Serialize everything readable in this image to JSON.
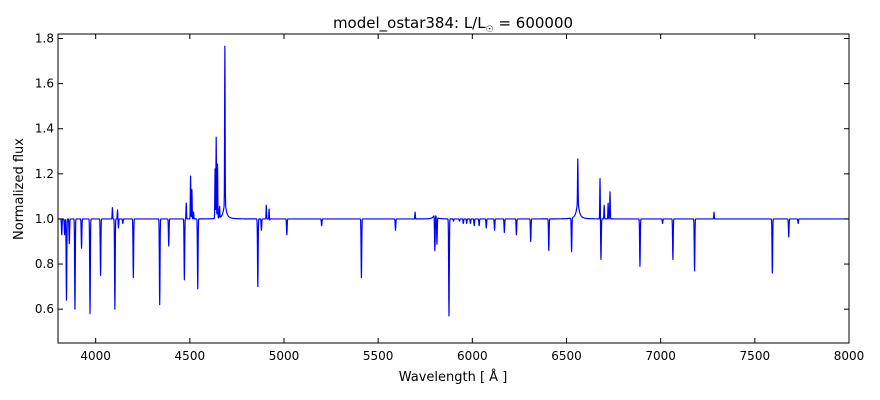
{
  "chart_data": {
    "type": "line",
    "title": "model_ostar384: L/L",
    "title_symbol": "☉",
    "title_suffix": " = 600000",
    "xlabel": "Wavelength [ Å ]",
    "ylabel": "Normalized flux",
    "xlim": [
      3800,
      8000
    ],
    "ylim": [
      0.45,
      1.82
    ],
    "grid": false,
    "legend": "none",
    "x_ticks": [
      4000,
      4500,
      5000,
      5500,
      6000,
      6500,
      7000,
      7500,
      8000
    ],
    "x_tick_labels": [
      "4000",
      "4500",
      "5000",
      "5500",
      "6000",
      "6500",
      "7000",
      "7500",
      "8000"
    ],
    "y_ticks": [
      0.6,
      0.8,
      1.0,
      1.2,
      1.4,
      1.6,
      1.8
    ],
    "y_tick_labels": [
      "0.6",
      "0.8",
      "1.0",
      "1.2",
      "1.4",
      "1.6",
      "1.8"
    ],
    "series": [
      {
        "color": "#0000ff",
        "continuum": 1.0,
        "absorption_lines": [
          {
            "x": 3820,
            "y": 0.93
          },
          {
            "x": 3835,
            "y": 0.93
          },
          {
            "x": 3845,
            "y": 0.64
          },
          {
            "x": 3860,
            "y": 0.89
          },
          {
            "x": 3890,
            "y": 0.6
          },
          {
            "x": 3925,
            "y": 0.87
          },
          {
            "x": 3970,
            "y": 0.58
          },
          {
            "x": 4026,
            "y": 0.75
          },
          {
            "x": 4102,
            "y": 0.6
          },
          {
            "x": 4121,
            "y": 0.96
          },
          {
            "x": 4144,
            "y": 0.98
          },
          {
            "x": 4200,
            "y": 0.74
          },
          {
            "x": 4340,
            "y": 0.62
          },
          {
            "x": 4388,
            "y": 0.88
          },
          {
            "x": 4471,
            "y": 0.73
          },
          {
            "x": 4542,
            "y": 0.69
          },
          {
            "x": 4861,
            "y": 0.7
          },
          {
            "x": 4880,
            "y": 0.95
          },
          {
            "x": 4922,
            "y": 0.98
          },
          {
            "x": 5015,
            "y": 0.93
          },
          {
            "x": 5200,
            "y": 0.97
          },
          {
            "x": 5411,
            "y": 0.74
          },
          {
            "x": 5592,
            "y": 0.95
          },
          {
            "x": 5801,
            "y": 0.8
          },
          {
            "x": 5812,
            "y": 0.88
          },
          {
            "x": 5876,
            "y": 0.57
          },
          {
            "x": 5900,
            "y": 0.99
          },
          {
            "x": 5932,
            "y": 0.99
          },
          {
            "x": 5952,
            "y": 0.98
          },
          {
            "x": 5970,
            "y": 0.98
          },
          {
            "x": 5990,
            "y": 0.98
          },
          {
            "x": 6010,
            "y": 0.97
          },
          {
            "x": 6036,
            "y": 0.97
          },
          {
            "x": 6074,
            "y": 0.96
          },
          {
            "x": 6118,
            "y": 0.95
          },
          {
            "x": 6170,
            "y": 0.94
          },
          {
            "x": 6234,
            "y": 0.93
          },
          {
            "x": 6310,
            "y": 0.9
          },
          {
            "x": 6406,
            "y": 0.86
          },
          {
            "x": 6527,
            "y": 0.85
          },
          {
            "x": 6683,
            "y": 0.82
          },
          {
            "x": 6890,
            "y": 0.79
          },
          {
            "x": 7010,
            "y": 0.98
          },
          {
            "x": 7065,
            "y": 0.82
          },
          {
            "x": 7180,
            "y": 0.77
          },
          {
            "x": 7593,
            "y": 0.76
          },
          {
            "x": 7680,
            "y": 0.92
          },
          {
            "x": 7730,
            "y": 0.98
          }
        ],
        "emission_lines": [
          {
            "x": 4089,
            "y": 1.05
          },
          {
            "x": 4116,
            "y": 1.04
          },
          {
            "x": 4481,
            "y": 1.07
          },
          {
            "x": 4504,
            "y": 1.19
          },
          {
            "x": 4511,
            "y": 1.13
          },
          {
            "x": 4520,
            "y": 1.03
          },
          {
            "x": 4634,
            "y": 1.22
          },
          {
            "x": 4640,
            "y": 1.36
          },
          {
            "x": 4647,
            "y": 1.24
          },
          {
            "x": 4658,
            "y": 1.05
          },
          {
            "x": 4686,
            "y": 1.7
          },
          {
            "x": 4906,
            "y": 1.06
          },
          {
            "x": 4921,
            "y": 1.06
          },
          {
            "x": 5696,
            "y": 1.03
          },
          {
            "x": 5801,
            "y": 1.04
          },
          {
            "x": 6560,
            "y": 1.2
          },
          {
            "x": 6678,
            "y": 1.18
          },
          {
            "x": 6700,
            "y": 1.06
          },
          {
            "x": 6721,
            "y": 1.07
          },
          {
            "x": 6731,
            "y": 1.12
          },
          {
            "x": 7283,
            "y": 1.03
          }
        ],
        "broad_emission": [
          {
            "x": 4686,
            "y": 1.12
          },
          {
            "x": 6560,
            "y": 1.12
          },
          {
            "x": 5801,
            "y": 1.035
          }
        ]
      }
    ]
  }
}
